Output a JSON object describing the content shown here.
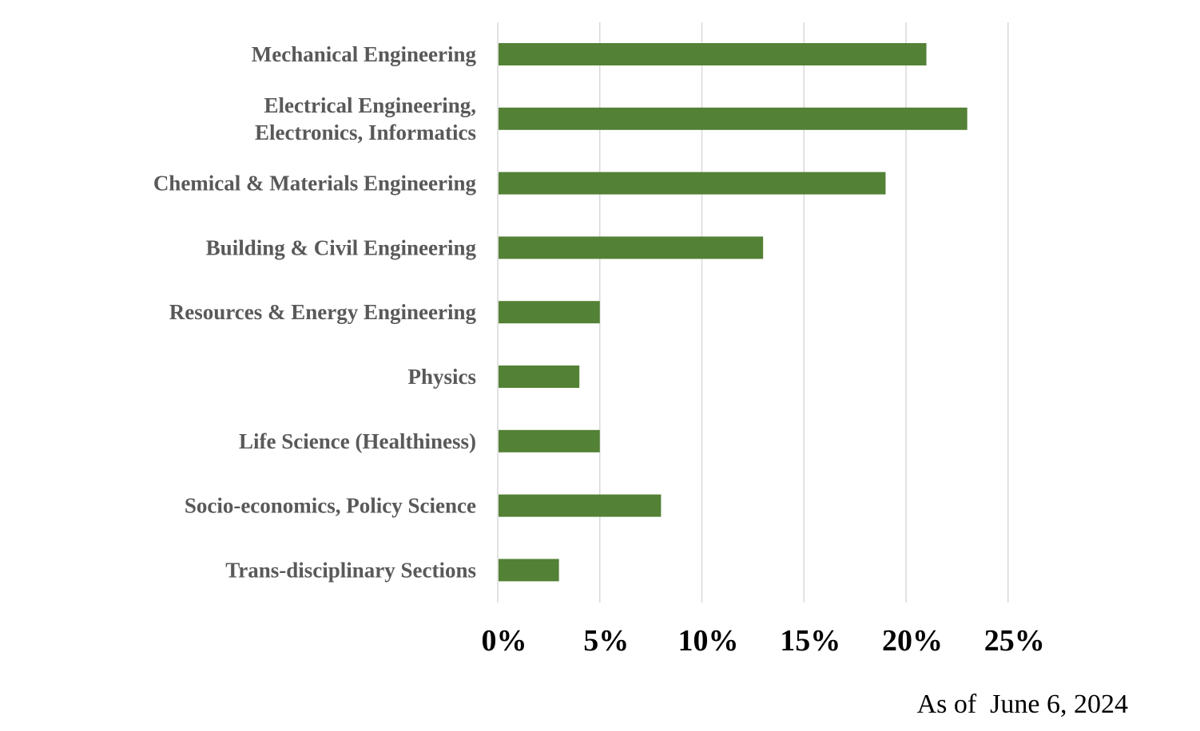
{
  "chart_data": {
    "type": "bar",
    "orientation": "horizontal",
    "categories": [
      [
        "Mechanical Engineering"
      ],
      [
        "Electrical Engineering,",
        "Electronics, Informatics"
      ],
      [
        "Chemical & Materials Engineering"
      ],
      [
        "Building & Civil Engineering"
      ],
      [
        "Resources & Energy Engineering"
      ],
      [
        "Physics"
      ],
      [
        "Life Science (Healthiness)"
      ],
      [
        "Socio-economics, Policy Science"
      ],
      [
        "Trans-disciplinary Sections"
      ]
    ],
    "values": [
      21,
      23,
      19,
      13,
      5,
      4,
      5,
      8,
      3
    ],
    "xlim": [
      0,
      25
    ],
    "x_ticks": [
      0,
      5,
      10,
      15,
      20,
      25
    ],
    "x_tick_labels": [
      "0%",
      "5%",
      "10%",
      "15%",
      "20%",
      "25%"
    ],
    "grid": true,
    "legend": "none",
    "bar_color": "#538135",
    "grid_color": "#d9d9d9"
  },
  "footer": {
    "note": "As of  June 6, 2024"
  }
}
